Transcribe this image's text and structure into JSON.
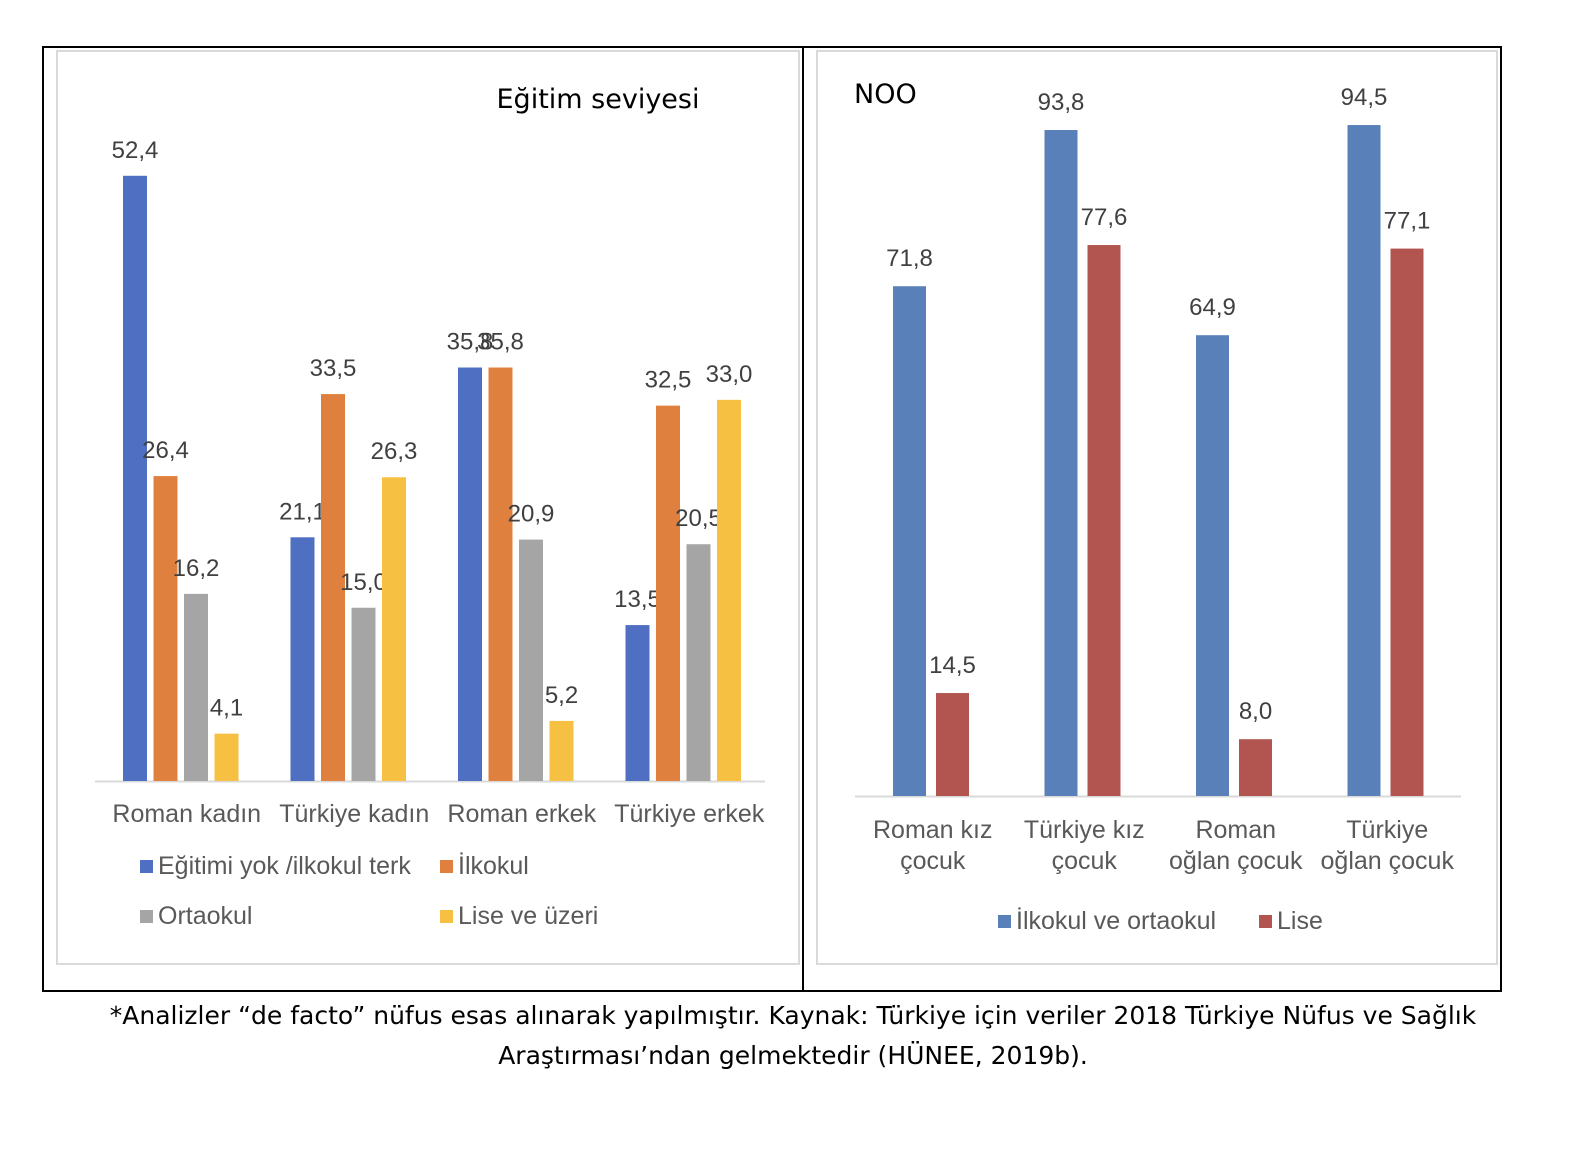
{
  "chart_data": [
    {
      "type": "bar",
      "title": "Eğitim seviyesi",
      "categories": [
        "Roman kadın",
        "Türkiye kadın",
        "Roman erkek",
        "Türkiye erkek"
      ],
      "series": [
        {
          "name": "Eğitimi yok /ilkokul terk",
          "color": "#4f70c2",
          "values": [
            52.4,
            21.1,
            35.8,
            13.5
          ],
          "labels": [
            "52,4",
            "21,1",
            "35,8",
            "13,5"
          ]
        },
        {
          "name": "İlkokul",
          "color": "#e0803f",
          "values": [
            26.4,
            33.5,
            35.8,
            32.5
          ],
          "labels": [
            "26,4",
            "33,5",
            "35,8",
            "32,5"
          ]
        },
        {
          "name": "Ortaokul",
          "color": "#a5a5a5",
          "values": [
            16.2,
            15.0,
            20.9,
            20.5
          ],
          "labels": [
            "16,2",
            "15,0",
            "20,9",
            "20,5"
          ]
        },
        {
          "name": "Lise ve üzeri",
          "color": "#f6c142",
          "values": [
            4.1,
            26.3,
            5.2,
            33.0
          ],
          "labels": [
            "4,1",
            "26,3",
            "5,2",
            "33,0"
          ]
        }
      ],
      "legend": "bottom",
      "grid": false
    },
    {
      "type": "bar",
      "title": "NOO",
      "categories": [
        "Roman kız çocuk",
        "Türkiye kız çocuk",
        "Roman oğlan çocuk",
        "Türkiye oğlan çocuk"
      ],
      "category_lines": [
        [
          "Roman kız",
          "çocuk"
        ],
        [
          "Türkiye kız",
          "çocuk"
        ],
        [
          "Roman",
          "oğlan çocuk"
        ],
        [
          "Türkiye",
          "oğlan çocuk"
        ]
      ],
      "series": [
        {
          "name": "İlkokul ve ortaokul",
          "color": "#5a80b9",
          "values": [
            71.8,
            93.8,
            64.9,
            94.5
          ],
          "labels": [
            "71,8",
            "93,8",
            "64,9",
            "94,5"
          ]
        },
        {
          "name": "Lise",
          "color": "#b25550",
          "values": [
            14.5,
            77.6,
            8.0,
            77.1
          ],
          "labels": [
            "14,5",
            "77,6",
            "8,0",
            "77,1"
          ]
        }
      ],
      "legend": "bottom",
      "grid": false
    }
  ],
  "caption": {
    "line1": "*Analizler “de facto” nüfus esas alınarak yapılmıştır. Kaynak: Türkiye için veriler 2018 Türkiye Nüfus ve Sağlık",
    "line2": "Araştırması’ndan gelmektedir (HÜNEE, 2019b)."
  }
}
